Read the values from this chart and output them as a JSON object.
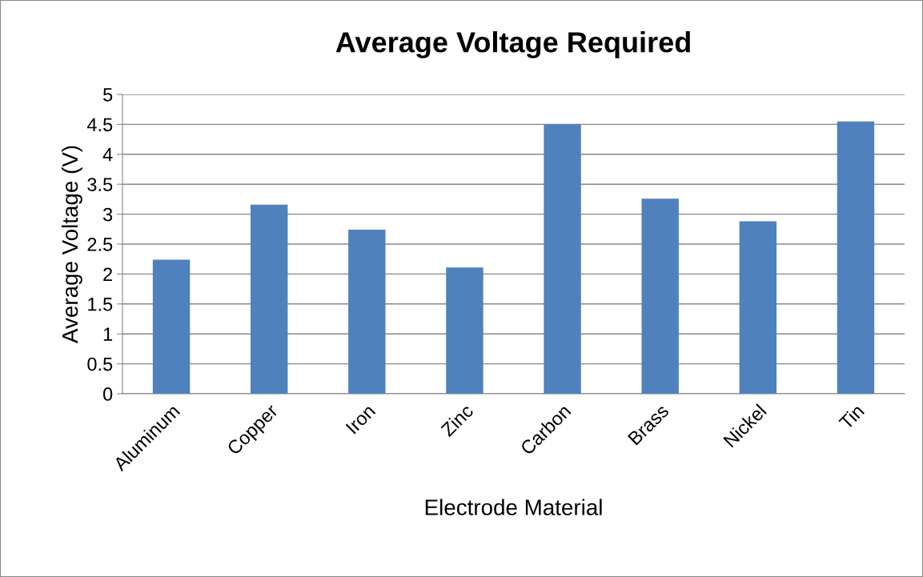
{
  "chart_data": {
    "type": "bar",
    "title": "Average Voltage Required",
    "xlabel": "Electrode Material",
    "ylabel": "Average Voltage (V)",
    "categories": [
      "Aluminum",
      "Copper",
      "Iron",
      "Zinc",
      "Carbon",
      "Brass",
      "Nickel",
      "Tin"
    ],
    "values": [
      2.24,
      3.16,
      2.74,
      2.11,
      4.5,
      3.26,
      2.88,
      4.55
    ],
    "color": "#4f81bd",
    "ylim": [
      0,
      5
    ],
    "yticks": [
      0,
      0.5,
      1,
      1.5,
      2,
      2.5,
      3,
      3.5,
      4,
      4.5,
      5
    ],
    "grid": "y",
    "legend": false
  }
}
